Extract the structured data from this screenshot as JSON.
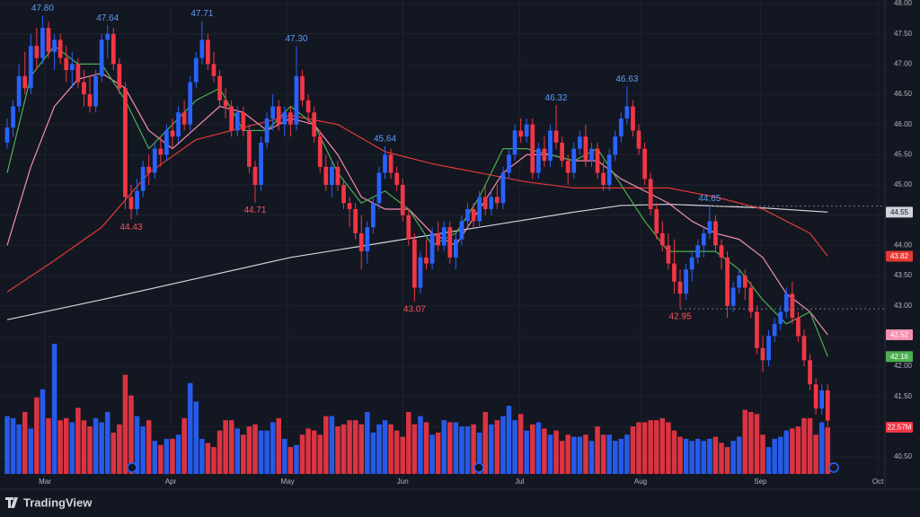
{
  "chart_data": {
    "type": "candlestick",
    "brand": "TradingView",
    "candles": [
      [
        45.7,
        46.1,
        45.6,
        45.95
      ],
      [
        45.95,
        46.4,
        45.8,
        46.3
      ],
      [
        46.3,
        47.0,
        46.2,
        46.8
      ],
      [
        46.8,
        47.2,
        46.5,
        46.6
      ],
      [
        46.6,
        47.5,
        46.5,
        47.3
      ],
      [
        47.3,
        47.6,
        46.9,
        47.1
      ],
      [
        47.1,
        47.8,
        47.0,
        47.6
      ],
      [
        47.6,
        47.7,
        47.1,
        47.2
      ],
      [
        47.2,
        47.5,
        46.9,
        47.4
      ],
      [
        47.4,
        47.5,
        47.0,
        47.1
      ],
      [
        47.1,
        47.3,
        46.7,
        46.9
      ],
      [
        46.9,
        47.2,
        46.6,
        47.0
      ],
      [
        47.0,
        47.1,
        46.6,
        46.7
      ],
      [
        46.7,
        46.9,
        46.3,
        46.5
      ],
      [
        46.5,
        46.8,
        46.2,
        46.3
      ],
      [
        46.3,
        46.9,
        46.2,
        46.8
      ],
      [
        46.8,
        47.5,
        46.7,
        47.4
      ],
      [
        47.4,
        47.64,
        47.1,
        47.5
      ],
      [
        47.5,
        47.6,
        46.9,
        47.0
      ],
      [
        47.0,
        47.1,
        46.5,
        46.6
      ],
      [
        46.6,
        46.7,
        44.6,
        44.8
      ],
      [
        44.8,
        45.0,
        44.43,
        44.6
      ],
      [
        44.6,
        45.1,
        44.5,
        44.9
      ],
      [
        44.9,
        45.4,
        44.8,
        45.3
      ],
      [
        45.3,
        45.5,
        45.0,
        45.2
      ],
      [
        45.2,
        45.7,
        45.1,
        45.6
      ],
      [
        45.6,
        45.8,
        45.3,
        45.5
      ],
      [
        45.5,
        46.0,
        45.4,
        45.9
      ],
      [
        45.9,
        46.1,
        45.6,
        45.8
      ],
      [
        45.8,
        46.3,
        45.7,
        46.2
      ],
      [
        46.2,
        46.4,
        45.9,
        46.0
      ],
      [
        46.0,
        46.8,
        45.9,
        46.7
      ],
      [
        46.7,
        47.2,
        46.6,
        47.1
      ],
      [
        47.1,
        47.71,
        47.0,
        47.4
      ],
      [
        47.4,
        47.5,
        46.9,
        47.0
      ],
      [
        47.0,
        47.2,
        46.7,
        46.8
      ],
      [
        46.8,
        46.9,
        46.3,
        46.4
      ],
      [
        46.4,
        46.6,
        46.1,
        46.3
      ],
      [
        46.3,
        46.4,
        45.8,
        45.9
      ],
      [
        45.9,
        46.3,
        45.8,
        46.2
      ],
      [
        46.2,
        46.3,
        45.8,
        45.9
      ],
      [
        45.9,
        46.0,
        45.2,
        45.3
      ],
      [
        45.3,
        45.4,
        44.71,
        45.0
      ],
      [
        45.0,
        45.8,
        44.9,
        45.7
      ],
      [
        45.7,
        46.2,
        45.6,
        46.1
      ],
      [
        46.1,
        46.5,
        45.9,
        46.3
      ],
      [
        46.3,
        46.4,
        45.9,
        46.0
      ],
      [
        46.0,
        46.3,
        45.8,
        46.2
      ],
      [
        46.2,
        46.3,
        45.8,
        46.0
      ],
      [
        46.0,
        47.3,
        45.9,
        46.8
      ],
      [
        46.8,
        46.9,
        46.3,
        46.4
      ],
      [
        46.4,
        46.5,
        46.0,
        46.2
      ],
      [
        46.2,
        46.3,
        45.7,
        45.8
      ],
      [
        45.8,
        45.9,
        45.2,
        45.3
      ],
      [
        45.3,
        45.5,
        44.9,
        45.0
      ],
      [
        45.0,
        45.4,
        44.8,
        45.3
      ],
      [
        45.3,
        45.4,
        44.9,
        45.0
      ],
      [
        45.0,
        45.1,
        44.6,
        44.7
      ],
      [
        44.7,
        44.8,
        44.3,
        44.6
      ],
      [
        44.6,
        44.7,
        44.1,
        44.2
      ],
      [
        44.2,
        44.5,
        43.6,
        43.9
      ],
      [
        43.9,
        44.4,
        43.7,
        44.3
      ],
      [
        44.3,
        44.8,
        44.2,
        44.7
      ],
      [
        44.7,
        45.3,
        44.6,
        45.2
      ],
      [
        45.2,
        45.64,
        45.1,
        45.5
      ],
      [
        45.5,
        45.6,
        45.1,
        45.2
      ],
      [
        45.2,
        45.3,
        44.9,
        45.0
      ],
      [
        45.0,
        45.1,
        44.4,
        44.5
      ],
      [
        44.5,
        44.6,
        44.0,
        44.1
      ],
      [
        44.1,
        44.2,
        43.07,
        43.3
      ],
      [
        43.3,
        43.9,
        43.2,
        43.8
      ],
      [
        43.8,
        44.1,
        43.6,
        43.7
      ],
      [
        43.7,
        44.3,
        43.6,
        44.2
      ],
      [
        44.2,
        44.4,
        43.9,
        44.0
      ],
      [
        44.0,
        44.4,
        43.9,
        44.3
      ],
      [
        44.3,
        44.4,
        43.7,
        43.8
      ],
      [
        43.8,
        44.2,
        43.6,
        44.1
      ],
      [
        44.1,
        44.5,
        44.0,
        44.4
      ],
      [
        44.4,
        44.7,
        44.3,
        44.6
      ],
      [
        44.6,
        44.7,
        44.3,
        44.4
      ],
      [
        44.4,
        44.9,
        44.3,
        44.8
      ],
      [
        44.8,
        45.0,
        44.5,
        44.6
      ],
      [
        44.6,
        44.9,
        44.5,
        44.8
      ],
      [
        44.8,
        45.0,
        44.6,
        44.7
      ],
      [
        44.7,
        45.3,
        44.6,
        45.2
      ],
      [
        45.2,
        45.6,
        45.1,
        45.5
      ],
      [
        45.5,
        46.0,
        45.4,
        45.9
      ],
      [
        45.9,
        46.1,
        45.7,
        45.8
      ],
      [
        45.8,
        46.1,
        45.7,
        46.0
      ],
      [
        46.0,
        46.1,
        45.1,
        45.2
      ],
      [
        45.2,
        45.7,
        45.1,
        45.6
      ],
      [
        45.6,
        45.8,
        45.3,
        45.4
      ],
      [
        45.4,
        46.0,
        45.3,
        45.9
      ],
      [
        45.9,
        46.32,
        45.6,
        45.7
      ],
      [
        45.7,
        45.8,
        45.3,
        45.4
      ],
      [
        45.4,
        45.5,
        45.0,
        45.2
      ],
      [
        45.2,
        45.7,
        45.1,
        45.6
      ],
      [
        45.6,
        45.9,
        45.5,
        45.8
      ],
      [
        45.8,
        46.0,
        45.3,
        45.4
      ],
      [
        45.4,
        45.7,
        45.3,
        45.6
      ],
      [
        45.6,
        45.7,
        45.1,
        45.2
      ],
      [
        45.2,
        45.4,
        44.9,
        45.0
      ],
      [
        45.0,
        45.6,
        44.9,
        45.5
      ],
      [
        45.5,
        45.9,
        45.4,
        45.8
      ],
      [
        45.8,
        46.2,
        45.7,
        46.1
      ],
      [
        46.1,
        46.63,
        46.0,
        46.3
      ],
      [
        46.3,
        46.4,
        45.8,
        45.9
      ],
      [
        45.9,
        46.0,
        45.5,
        45.6
      ],
      [
        45.6,
        45.7,
        45.0,
        45.1
      ],
      [
        45.1,
        45.2,
        44.5,
        44.6
      ],
      [
        44.6,
        44.7,
        44.1,
        44.2
      ],
      [
        44.2,
        44.4,
        43.9,
        44.0
      ],
      [
        44.0,
        44.2,
        43.6,
        43.7
      ],
      [
        43.7,
        44.1,
        43.2,
        43.4
      ],
      [
        43.4,
        43.6,
        42.95,
        43.2
      ],
      [
        43.2,
        43.7,
        43.1,
        43.6
      ],
      [
        43.6,
        43.9,
        43.4,
        43.8
      ],
      [
        43.8,
        44.1,
        43.7,
        44.0
      ],
      [
        44.0,
        44.3,
        43.8,
        44.2
      ],
      [
        44.2,
        44.65,
        44.1,
        44.4
      ],
      [
        44.4,
        44.5,
        43.9,
        44.0
      ],
      [
        44.0,
        44.1,
        43.6,
        43.8
      ],
      [
        43.8,
        43.9,
        42.8,
        43.0
      ],
      [
        43.0,
        43.4,
        42.9,
        43.3
      ],
      [
        43.3,
        43.6,
        43.2,
        43.5
      ],
      [
        43.5,
        43.6,
        43.1,
        43.3
      ],
      [
        43.3,
        43.4,
        42.8,
        42.9
      ],
      [
        42.9,
        43.0,
        42.2,
        42.3
      ],
      [
        42.3,
        42.5,
        41.9,
        42.1
      ],
      [
        42.1,
        42.6,
        42.0,
        42.5
      ],
      [
        42.5,
        42.8,
        42.4,
        42.7
      ],
      [
        42.7,
        43.0,
        42.6,
        42.9
      ],
      [
        42.9,
        43.3,
        42.8,
        43.2
      ],
      [
        43.2,
        43.4,
        42.7,
        42.8
      ],
      [
        42.8,
        42.9,
        42.4,
        42.5
      ],
      [
        42.5,
        42.6,
        42.0,
        42.1
      ],
      [
        42.1,
        42.2,
        41.6,
        41.7
      ],
      [
        41.7,
        41.8,
        41.2,
        41.3
      ],
      [
        41.3,
        41.7,
        41.2,
        41.6
      ],
      [
        41.6,
        41.7,
        41.0,
        41.1
      ]
    ],
    "volume": [
      28,
      27,
      24,
      30,
      22,
      37,
      41,
      27,
      63,
      26,
      27,
      25,
      32,
      26,
      23,
      27,
      25,
      30,
      20,
      24,
      48,
      38,
      28,
      23,
      26,
      16,
      14,
      17,
      17,
      19,
      27,
      44,
      35,
      17,
      15,
      13,
      21,
      26,
      26,
      22,
      19,
      23,
      24,
      21,
      21,
      25,
      27,
      17,
      13,
      14,
      19,
      22,
      21,
      19,
      28,
      28,
      23,
      24,
      26,
      26,
      24,
      30,
      20,
      24,
      26,
      24,
      21,
      18,
      30,
      24,
      28,
      25,
      19,
      20,
      26,
      25,
      25,
      23,
      23,
      24,
      20,
      30,
      24,
      26,
      28,
      33,
      26,
      29,
      21,
      24,
      25,
      22,
      19,
      21,
      16,
      19,
      18,
      18,
      19,
      16,
      23,
      19,
      19,
      16,
      17,
      19,
      23,
      25,
      25,
      26,
      26,
      27,
      25,
      21,
      18,
      17,
      16,
      17,
      16,
      17,
      18,
      15,
      13,
      16,
      18,
      31,
      30,
      29,
      19,
      13,
      17,
      18,
      21,
      22,
      23,
      27,
      27,
      19,
      25,
      22.57
    ],
    "volume_last_label": "22.57M",
    "vlim": [
      0,
      229
    ],
    "up_color": "#2962ff",
    "down_color": "#f23645",
    "series": [
      {
        "color": "#d1d4dc",
        "x": [
          0,
          16,
          32,
          48,
          64,
          80,
          96,
          104,
          112,
          128,
          139
        ],
        "values": [
          42.77,
          43.1,
          43.45,
          43.8,
          44.05,
          44.3,
          44.55,
          44.66,
          44.68,
          44.62,
          44.55
        ]
      },
      {
        "color": "#e53935",
        "x": [
          0,
          8,
          16,
          24,
          32,
          40,
          48,
          56,
          64,
          72,
          80,
          88,
          96,
          104,
          112,
          120,
          128,
          136,
          139
        ],
        "values": [
          43.23,
          43.75,
          44.3,
          45.2,
          45.75,
          45.95,
          46.15,
          46.0,
          45.55,
          45.35,
          45.2,
          45.05,
          44.95,
          44.95,
          44.95,
          44.8,
          44.6,
          44.2,
          43.82
        ]
      },
      {
        "color": "#f48fb1",
        "x": [
          0,
          4,
          8,
          12,
          16,
          20,
          24,
          28,
          32,
          36,
          40,
          44,
          48,
          52,
          56,
          60,
          64,
          68,
          72,
          76,
          80,
          84,
          88,
          92,
          96,
          100,
          104,
          108,
          112,
          116,
          120,
          124,
          128,
          132,
          136,
          139
        ],
        "values": [
          44.0,
          45.3,
          46.3,
          46.75,
          46.85,
          46.6,
          45.9,
          45.6,
          45.95,
          46.3,
          46.2,
          45.9,
          46.1,
          46.0,
          45.5,
          44.8,
          44.6,
          44.6,
          44.2,
          44.0,
          44.6,
          45.2,
          45.5,
          45.5,
          45.4,
          45.4,
          45.1,
          44.9,
          44.7,
          44.4,
          44.2,
          44.1,
          43.8,
          43.2,
          42.9,
          42.52
        ]
      },
      {
        "color": "#4caf50",
        "x": [
          0,
          4,
          8,
          12,
          16,
          20,
          24,
          28,
          32,
          36,
          40,
          44,
          48,
          52,
          56,
          60,
          64,
          68,
          72,
          76,
          80,
          84,
          88,
          92,
          96,
          100,
          104,
          108,
          112,
          116,
          120,
          124,
          128,
          132,
          136,
          139
        ],
        "values": [
          45.2,
          46.8,
          47.3,
          47.0,
          47.0,
          46.4,
          45.6,
          46.0,
          46.4,
          46.6,
          45.9,
          45.9,
          46.3,
          46.0,
          45.2,
          44.7,
          44.9,
          44.6,
          44.0,
          44.2,
          44.8,
          45.6,
          45.6,
          45.5,
          45.4,
          45.6,
          45.0,
          44.4,
          43.9,
          43.9,
          43.9,
          43.6,
          43.1,
          42.7,
          42.9,
          42.16
        ]
      }
    ],
    "annotations": [
      {
        "label": "47.80",
        "value": 47.8,
        "index": 6,
        "pos": "above"
      },
      {
        "label": "47.64",
        "value": 47.64,
        "index": 17,
        "pos": "above"
      },
      {
        "label": "44.43",
        "value": 44.43,
        "index": 21,
        "pos": "below"
      },
      {
        "label": "47.71",
        "value": 47.71,
        "index": 33,
        "pos": "above"
      },
      {
        "label": "44.71",
        "value": 44.71,
        "index": 42,
        "pos": "below"
      },
      {
        "label": "47.30",
        "value": 47.3,
        "index": 49,
        "pos": "above"
      },
      {
        "label": "45.64",
        "value": 45.64,
        "index": 64,
        "pos": "above"
      },
      {
        "label": "43.07",
        "value": 43.07,
        "index": 69,
        "pos": "below"
      },
      {
        "label": "46.32",
        "value": 46.32,
        "index": 93,
        "pos": "above"
      },
      {
        "label": "46.63",
        "value": 46.63,
        "index": 105,
        "pos": "above"
      },
      {
        "label": "42.95",
        "value": 42.95,
        "index": 114,
        "pos": "below",
        "guide": true
      },
      {
        "label": "44.65",
        "value": 44.65,
        "index": 119,
        "pos": "above",
        "guide": true
      }
    ],
    "xlim": [
      -1.22,
      148.7
    ],
    "xticks": [
      {
        "value": 6.4,
        "label": "Mar"
      },
      {
        "value": 27.7,
        "label": "Apr"
      },
      {
        "value": 47.5,
        "label": "May"
      },
      {
        "value": 67.0,
        "label": "Jun"
      },
      {
        "value": 86.8,
        "label": "Jul"
      },
      {
        "value": 107.3,
        "label": "Aug"
      },
      {
        "value": 127.6,
        "label": "Sep"
      },
      {
        "value": 147.5,
        "label": "Oct"
      }
    ],
    "ylim": [
      40.04,
      48.06
    ],
    "yticks": [
      {
        "value": 40.5,
        "label": "40.50"
      },
      {
        "value": 41,
        "label": "41.00"
      },
      {
        "value": 41.5,
        "label": "41.50"
      },
      {
        "value": 42,
        "label": "42.00"
      },
      {
        "value": 42.5,
        "label": "42.50"
      },
      {
        "value": 43,
        "label": "43.00"
      },
      {
        "value": 43.5,
        "label": "43.50"
      },
      {
        "value": 44,
        "label": "44.00"
      },
      {
        "value": 44.5,
        "label": "44.50"
      },
      {
        "value": 45,
        "label": "45.00"
      },
      {
        "value": 45.5,
        "label": "45.50"
      },
      {
        "value": 46,
        "label": "46.00"
      },
      {
        "value": 46.5,
        "label": "46.50"
      },
      {
        "value": 47,
        "label": "47.00"
      },
      {
        "value": 47.5,
        "label": "47.50"
      },
      {
        "value": 48,
        "label": "48.00"
      }
    ],
    "grid": true
  }
}
